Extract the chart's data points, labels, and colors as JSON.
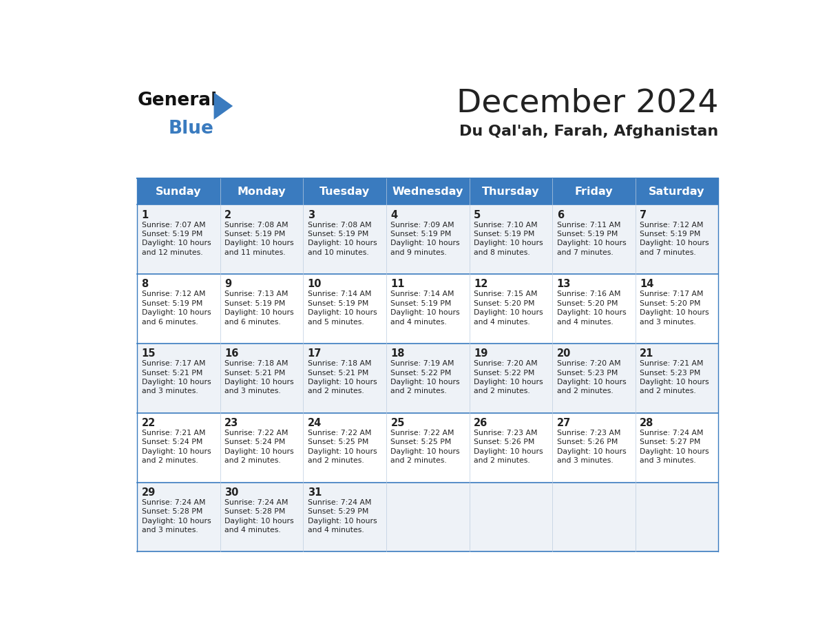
{
  "title": "December 2024",
  "subtitle": "Du Qal'ah, Farah, Afghanistan",
  "days_of_week": [
    "Sunday",
    "Monday",
    "Tuesday",
    "Wednesday",
    "Thursday",
    "Friday",
    "Saturday"
  ],
  "header_bg_color": "#3a7bbf",
  "header_text_color": "#ffffff",
  "cell_bg_even": "#eef2f7",
  "cell_bg_odd": "#ffffff",
  "cell_text_color": "#222222",
  "grid_line_color": "#3a7bbf",
  "day_number_color": "#222222",
  "title_color": "#222222",
  "subtitle_color": "#222222",
  "logo_general_color": "#111111",
  "logo_blue_color": "#3a7bbf",
  "calendar_data": [
    {
      "day": 1,
      "col": 0,
      "row": 0,
      "sunrise": "7:07 AM",
      "sunset": "5:19 PM",
      "daylight_suffix": "12 minutes."
    },
    {
      "day": 2,
      "col": 1,
      "row": 0,
      "sunrise": "7:08 AM",
      "sunset": "5:19 PM",
      "daylight_suffix": "11 minutes."
    },
    {
      "day": 3,
      "col": 2,
      "row": 0,
      "sunrise": "7:08 AM",
      "sunset": "5:19 PM",
      "daylight_suffix": "10 minutes."
    },
    {
      "day": 4,
      "col": 3,
      "row": 0,
      "sunrise": "7:09 AM",
      "sunset": "5:19 PM",
      "daylight_suffix": "9 minutes."
    },
    {
      "day": 5,
      "col": 4,
      "row": 0,
      "sunrise": "7:10 AM",
      "sunset": "5:19 PM",
      "daylight_suffix": "8 minutes."
    },
    {
      "day": 6,
      "col": 5,
      "row": 0,
      "sunrise": "7:11 AM",
      "sunset": "5:19 PM",
      "daylight_suffix": "7 minutes."
    },
    {
      "day": 7,
      "col": 6,
      "row": 0,
      "sunrise": "7:12 AM",
      "sunset": "5:19 PM",
      "daylight_suffix": "7 minutes."
    },
    {
      "day": 8,
      "col": 0,
      "row": 1,
      "sunrise": "7:12 AM",
      "sunset": "5:19 PM",
      "daylight_suffix": "6 minutes."
    },
    {
      "day": 9,
      "col": 1,
      "row": 1,
      "sunrise": "7:13 AM",
      "sunset": "5:19 PM",
      "daylight_suffix": "6 minutes."
    },
    {
      "day": 10,
      "col": 2,
      "row": 1,
      "sunrise": "7:14 AM",
      "sunset": "5:19 PM",
      "daylight_suffix": "5 minutes."
    },
    {
      "day": 11,
      "col": 3,
      "row": 1,
      "sunrise": "7:14 AM",
      "sunset": "5:19 PM",
      "daylight_suffix": "4 minutes."
    },
    {
      "day": 12,
      "col": 4,
      "row": 1,
      "sunrise": "7:15 AM",
      "sunset": "5:20 PM",
      "daylight_suffix": "4 minutes."
    },
    {
      "day": 13,
      "col": 5,
      "row": 1,
      "sunrise": "7:16 AM",
      "sunset": "5:20 PM",
      "daylight_suffix": "4 minutes."
    },
    {
      "day": 14,
      "col": 6,
      "row": 1,
      "sunrise": "7:17 AM",
      "sunset": "5:20 PM",
      "daylight_suffix": "3 minutes."
    },
    {
      "day": 15,
      "col": 0,
      "row": 2,
      "sunrise": "7:17 AM",
      "sunset": "5:21 PM",
      "daylight_suffix": "3 minutes."
    },
    {
      "day": 16,
      "col": 1,
      "row": 2,
      "sunrise": "7:18 AM",
      "sunset": "5:21 PM",
      "daylight_suffix": "3 minutes."
    },
    {
      "day": 17,
      "col": 2,
      "row": 2,
      "sunrise": "7:18 AM",
      "sunset": "5:21 PM",
      "daylight_suffix": "2 minutes."
    },
    {
      "day": 18,
      "col": 3,
      "row": 2,
      "sunrise": "7:19 AM",
      "sunset": "5:22 PM",
      "daylight_suffix": "2 minutes."
    },
    {
      "day": 19,
      "col": 4,
      "row": 2,
      "sunrise": "7:20 AM",
      "sunset": "5:22 PM",
      "daylight_suffix": "2 minutes."
    },
    {
      "day": 20,
      "col": 5,
      "row": 2,
      "sunrise": "7:20 AM",
      "sunset": "5:23 PM",
      "daylight_suffix": "2 minutes."
    },
    {
      "day": 21,
      "col": 6,
      "row": 2,
      "sunrise": "7:21 AM",
      "sunset": "5:23 PM",
      "daylight_suffix": "2 minutes."
    },
    {
      "day": 22,
      "col": 0,
      "row": 3,
      "sunrise": "7:21 AM",
      "sunset": "5:24 PM",
      "daylight_suffix": "2 minutes."
    },
    {
      "day": 23,
      "col": 1,
      "row": 3,
      "sunrise": "7:22 AM",
      "sunset": "5:24 PM",
      "daylight_suffix": "2 minutes."
    },
    {
      "day": 24,
      "col": 2,
      "row": 3,
      "sunrise": "7:22 AM",
      "sunset": "5:25 PM",
      "daylight_suffix": "2 minutes."
    },
    {
      "day": 25,
      "col": 3,
      "row": 3,
      "sunrise": "7:22 AM",
      "sunset": "5:25 PM",
      "daylight_suffix": "2 minutes."
    },
    {
      "day": 26,
      "col": 4,
      "row": 3,
      "sunrise": "7:23 AM",
      "sunset": "5:26 PM",
      "daylight_suffix": "2 minutes."
    },
    {
      "day": 27,
      "col": 5,
      "row": 3,
      "sunrise": "7:23 AM",
      "sunset": "5:26 PM",
      "daylight_suffix": "3 minutes."
    },
    {
      "day": 28,
      "col": 6,
      "row": 3,
      "sunrise": "7:24 AM",
      "sunset": "5:27 PM",
      "daylight_suffix": "3 minutes."
    },
    {
      "day": 29,
      "col": 0,
      "row": 4,
      "sunrise": "7:24 AM",
      "sunset": "5:28 PM",
      "daylight_suffix": "3 minutes."
    },
    {
      "day": 30,
      "col": 1,
      "row": 4,
      "sunrise": "7:24 AM",
      "sunset": "5:28 PM",
      "daylight_suffix": "4 minutes."
    },
    {
      "day": 31,
      "col": 2,
      "row": 4,
      "sunrise": "7:24 AM",
      "sunset": "5:29 PM",
      "daylight_suffix": "4 minutes."
    }
  ],
  "num_rows": 5,
  "num_cols": 7
}
